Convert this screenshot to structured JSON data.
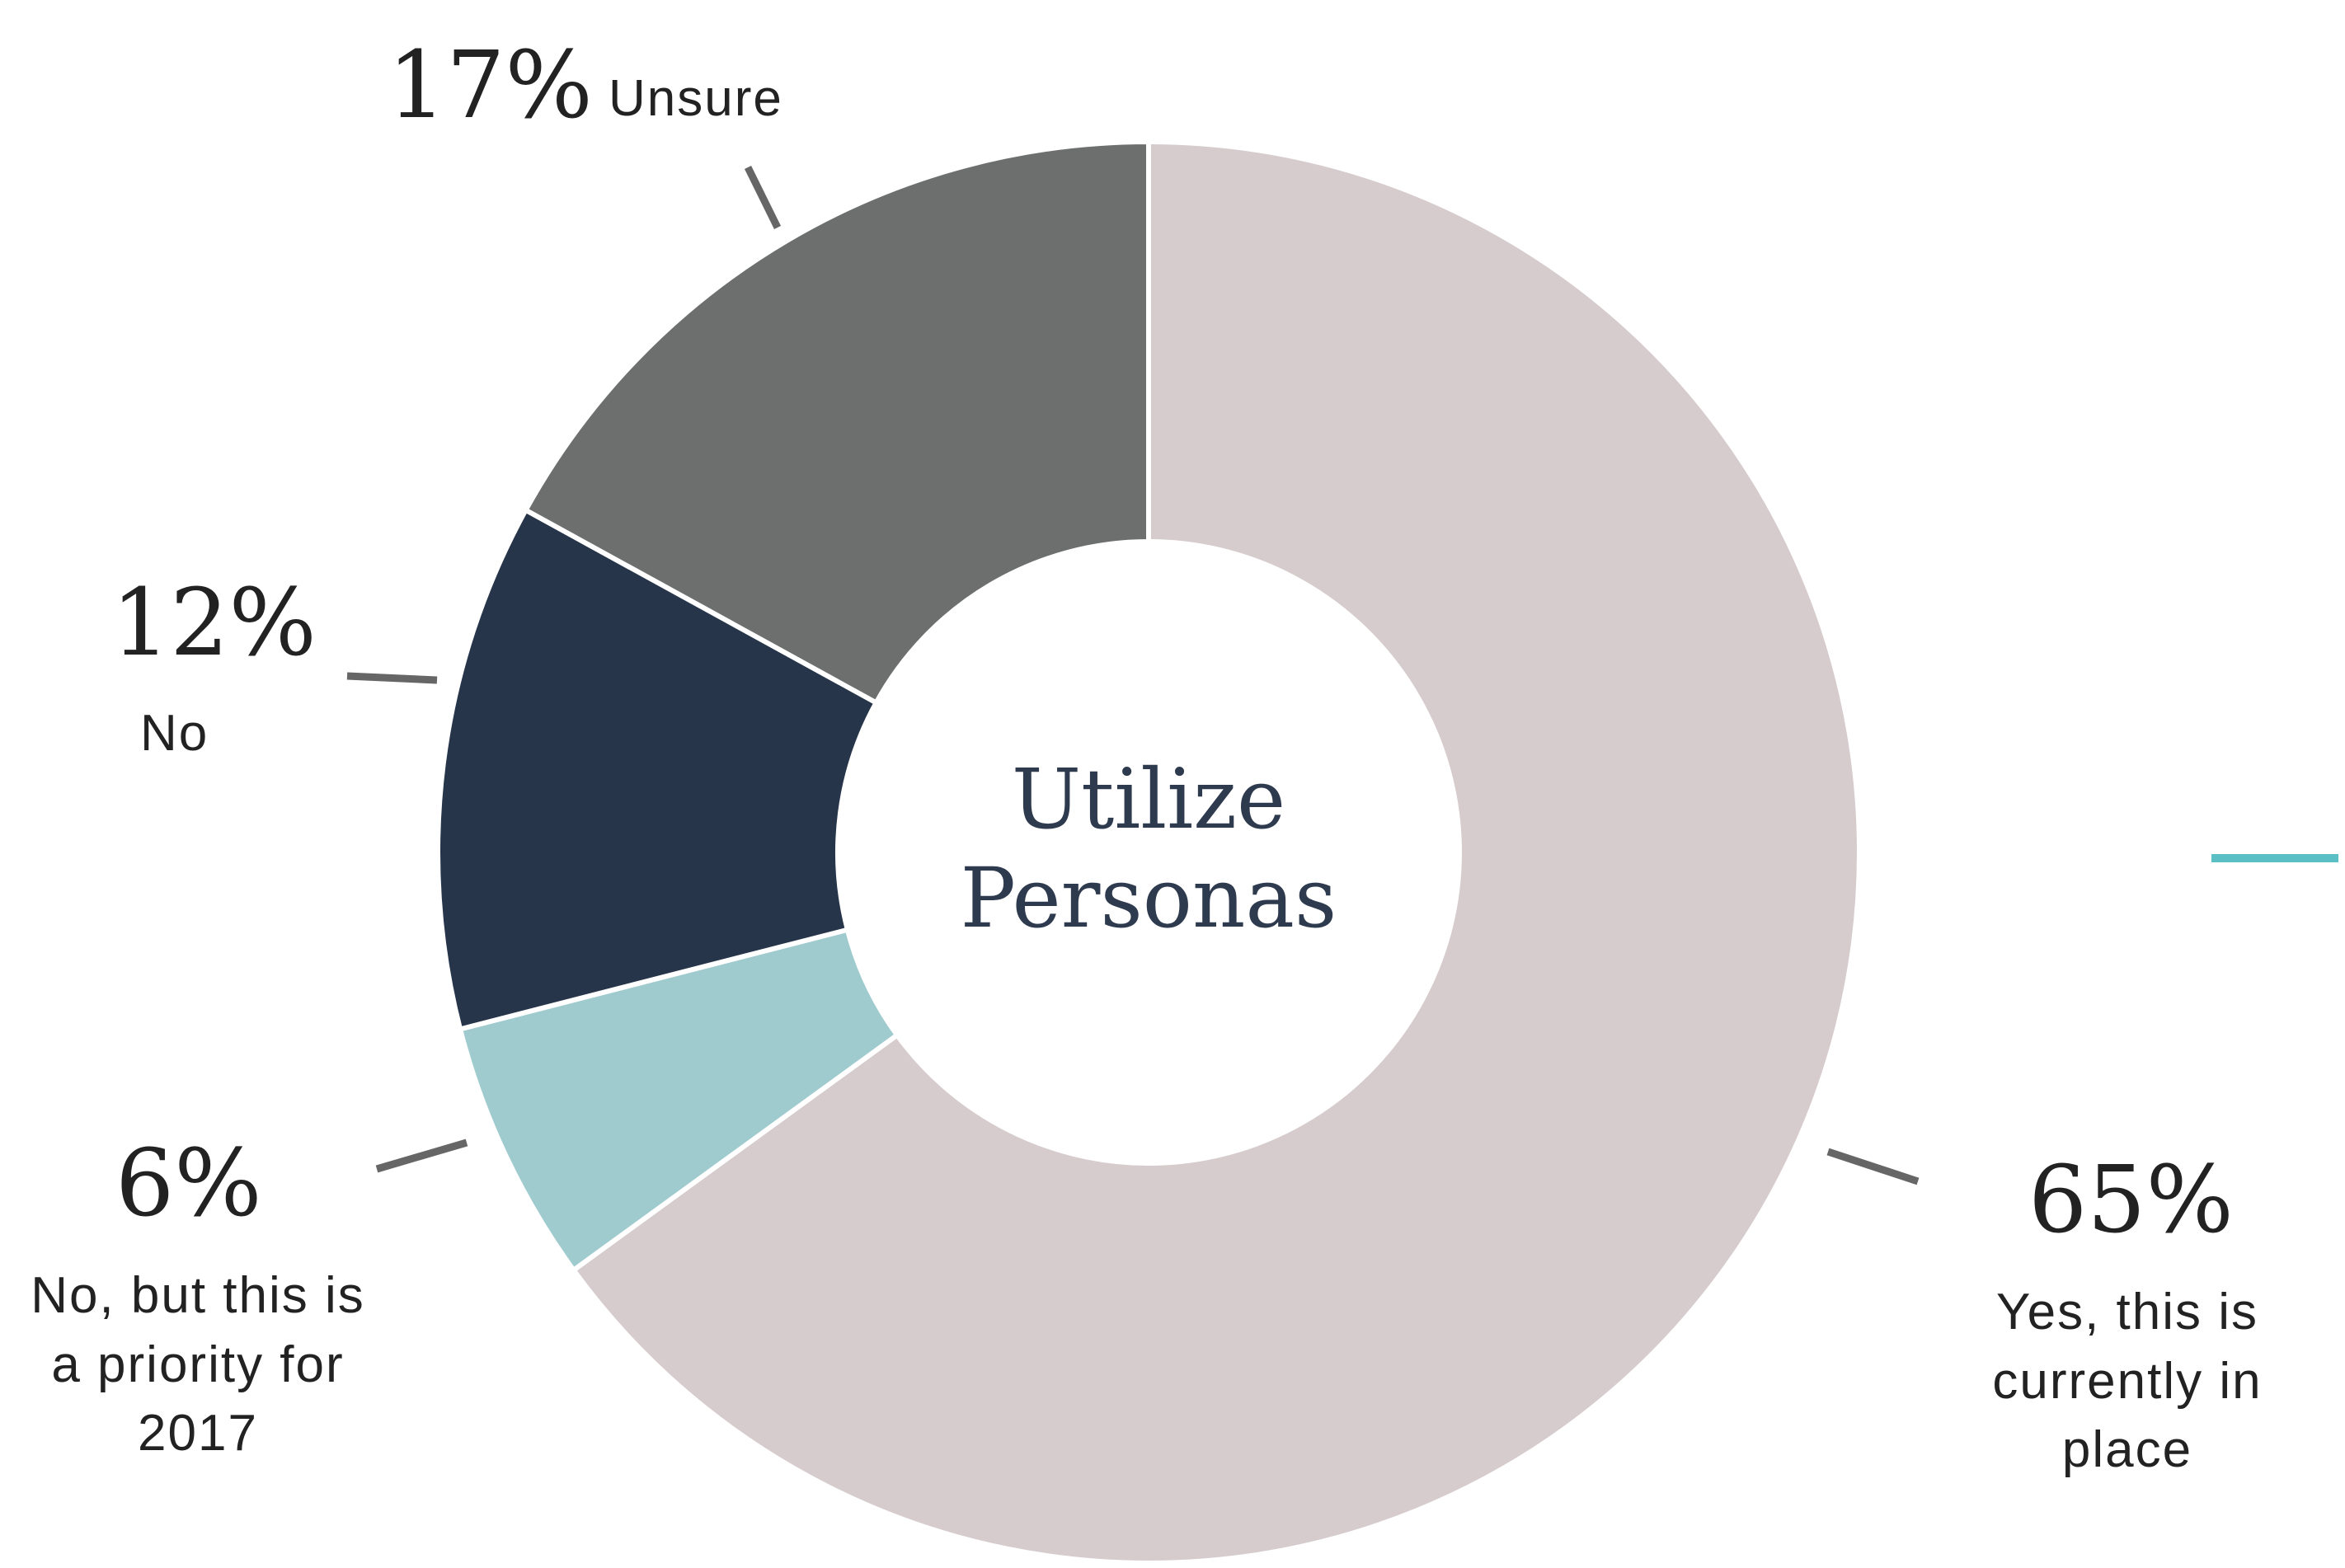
{
  "chart_data": {
    "type": "donut",
    "title": "Utilize Personas",
    "categories": [
      "Yes, this is currently in place",
      "No, but this is a priority for 2017",
      "No",
      "Unsure"
    ],
    "values": [
      65,
      6,
      12,
      17
    ],
    "value_labels": [
      "65%",
      "6%",
      "12%",
      "17%"
    ],
    "colors": [
      "#d6cbcd",
      "#9fcbcf",
      "#26354a",
      "#6d6f6f"
    ]
  }
}
